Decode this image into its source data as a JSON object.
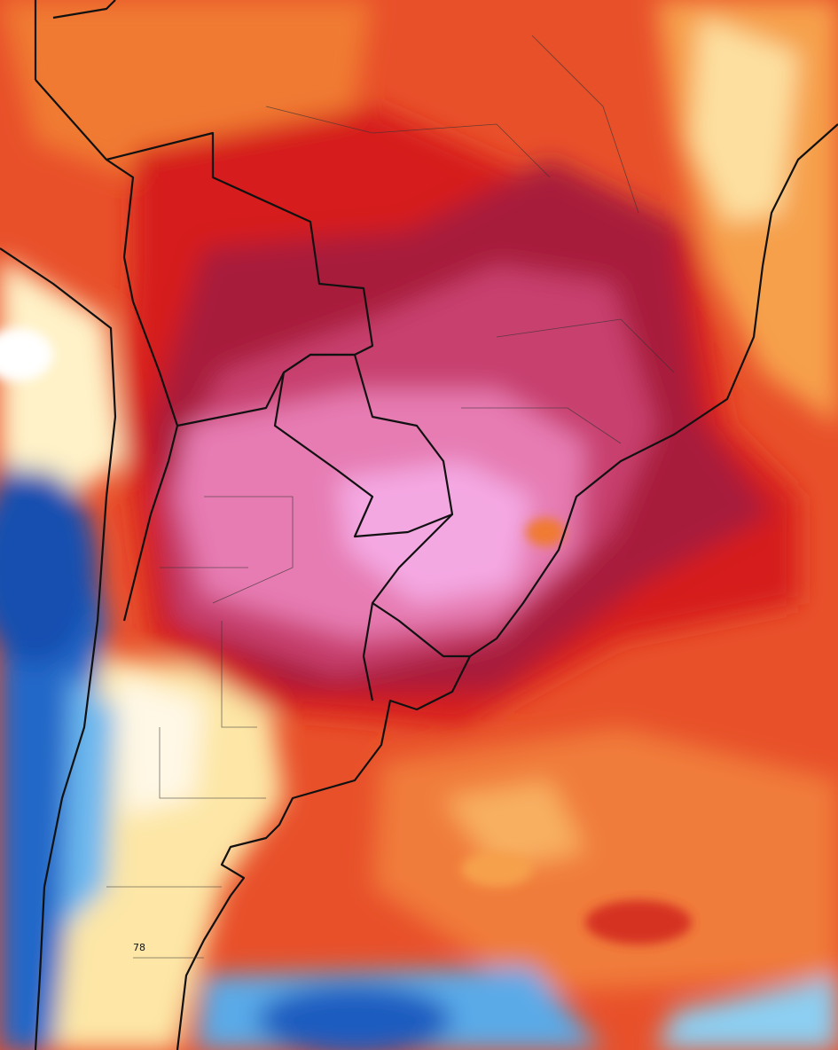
{
  "annotations": [
    {
      "text": "78"
    }
  ]
}
